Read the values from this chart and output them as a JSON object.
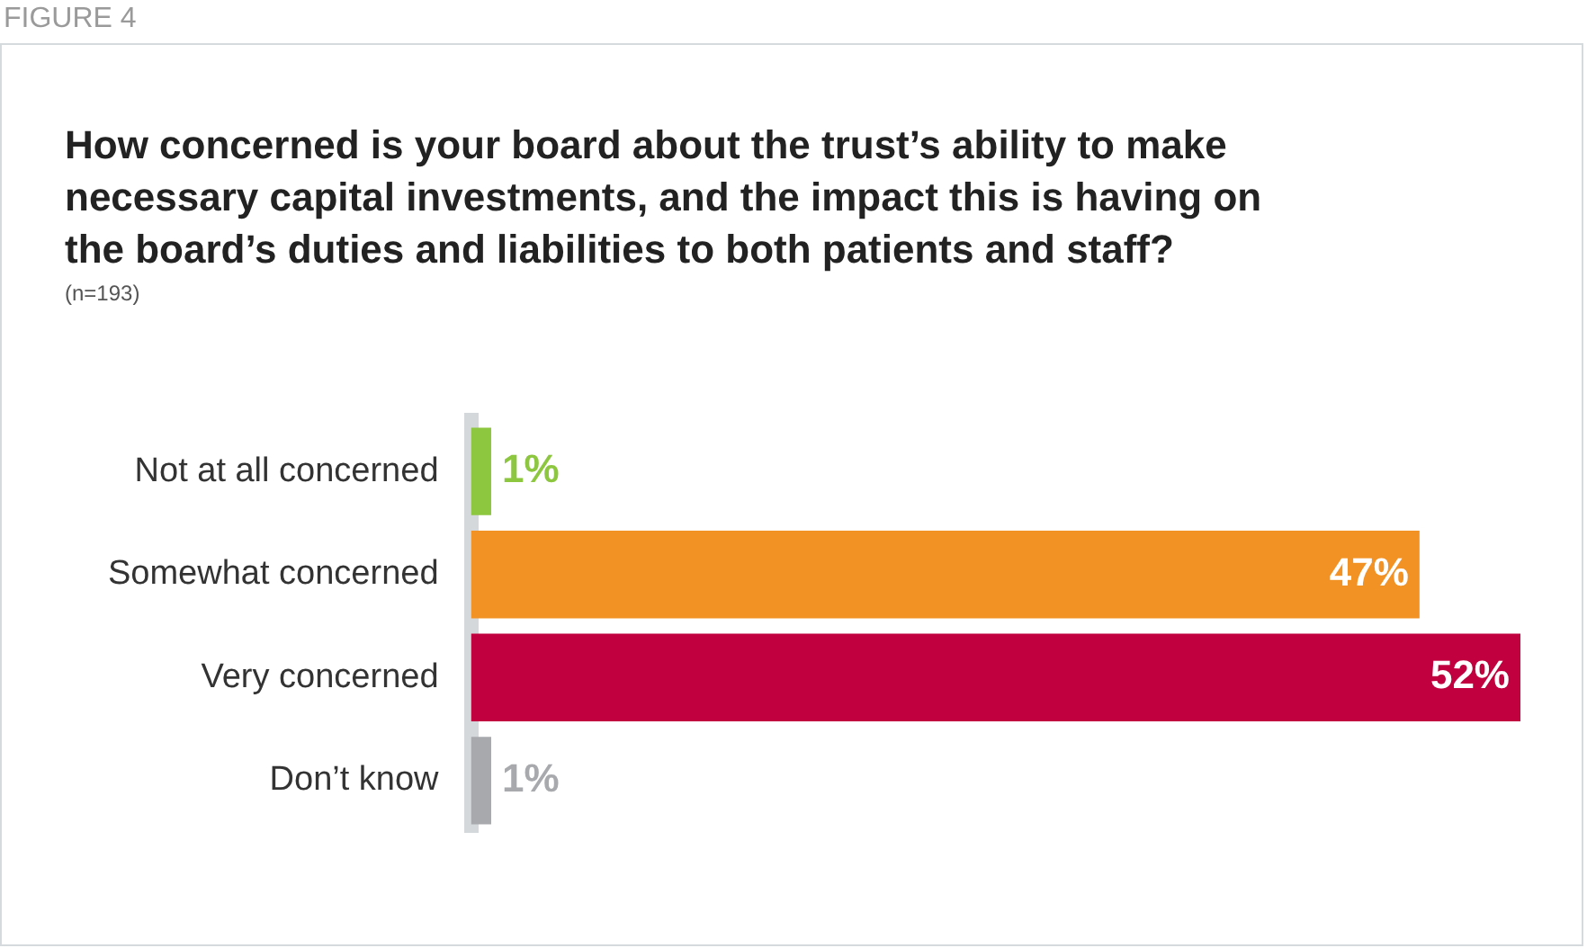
{
  "chart_data": {
    "type": "bar",
    "orientation": "horizontal",
    "title": "How concerned is your board about the trust’s ability to make necessary capital investments, and the impact this is having on the board’s duties and liabilities to both patients and staff?",
    "subtitle": "(n=193)",
    "annotations": [
      "FIGURE 4"
    ],
    "categories": [
      "Not at all concerned",
      "Somewhat concerned",
      "Very concerned",
      "Don’t know"
    ],
    "values": [
      1,
      47,
      52,
      1
    ],
    "colors": [
      "#8dc63f",
      "#f39224",
      "#c0003f",
      "#a7a9ac"
    ],
    "value_labels": [
      "1%",
      "47%",
      "52%",
      "1%"
    ]
  }
}
